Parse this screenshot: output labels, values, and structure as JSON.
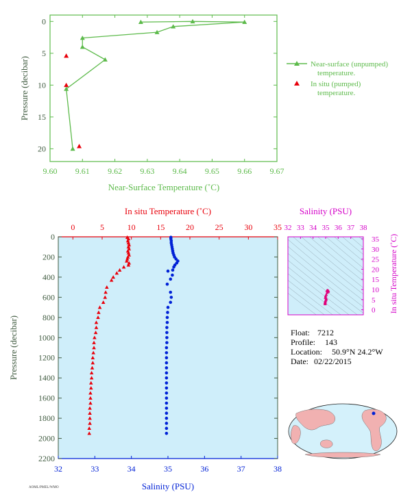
{
  "colors": {
    "green": "#5cba4a",
    "red": "#e8000b",
    "blue": "#0021d6",
    "magenta": "#d400c8",
    "axis_dark": "#3f5a3f",
    "panel_bg": "#cfeefa",
    "contour": "#8fa4b0",
    "land": "#f1b1b1",
    "ocean": "#d4f1fb"
  },
  "meta": {
    "float_label": "Float:",
    "float_value": "7212",
    "profile_label": "Profile:",
    "profile_value": "143",
    "location_label": "Location:",
    "location_value": "50.9°N  24.2°W",
    "date_label": "Date:",
    "date_value": "02/22/2015",
    "footnote": "AOML/PMEL/WMO"
  },
  "chart_data": [
    {
      "id": "near-surface",
      "type": "scatter",
      "xlabel": "Near-Surface Temperature (˚C)",
      "ylabel": "Pressure (decibar)",
      "xlim": [
        9.6,
        9.67
      ],
      "ylim": [
        22,
        -1
      ],
      "xticks": [
        "9.60",
        "9.61",
        "9.62",
        "9.63",
        "9.64",
        "9.65",
        "9.66",
        "9.67"
      ],
      "yticks": [
        "0",
        "5",
        "10",
        "15",
        "20"
      ],
      "legend_position": "right",
      "series": [
        {
          "name": "Near-surface (unpumped) temperature.",
          "legend_lines": [
            "Near-surface (unpumped)",
            "temperature."
          ],
          "color": "#5cba4a",
          "marker": "triangle",
          "connected": true,
          "points": [
            [
              9.628,
              0.1
            ],
            [
              9.644,
              0.0
            ],
            [
              9.66,
              0.1
            ],
            [
              9.638,
              0.8
            ],
            [
              9.633,
              1.7
            ],
            [
              9.61,
              2.6
            ],
            [
              9.61,
              4.0
            ],
            [
              9.617,
              6.0
            ],
            [
              9.605,
              10.6
            ],
            [
              9.607,
              20.0
            ]
          ]
        },
        {
          "name": "In situ (pumped) temperature.",
          "legend_lines": [
            "In situ (pumped)",
            "temperature."
          ],
          "color": "#e8000b",
          "marker": "triangle",
          "connected": false,
          "points": [
            [
              9.605,
              5.4
            ],
            [
              9.605,
              10.0
            ],
            [
              9.609,
              19.6
            ]
          ]
        }
      ]
    },
    {
      "id": "profile",
      "type": "scatter",
      "top_xlabel": "In situ Temperature (˚C)",
      "bottom_xlabel": "Salinity (PSU)",
      "ylabel": "Pressure (decibar)",
      "temp_lim": [
        -2.5,
        35
      ],
      "temp_ticks": [
        "0",
        "5",
        "10",
        "15",
        "20",
        "25",
        "30",
        "35"
      ],
      "sal_lim": [
        32,
        38
      ],
      "sal_ticks": [
        "32",
        "33",
        "34",
        "35",
        "36",
        "37",
        "38"
      ],
      "pres_lim": [
        2200,
        0
      ],
      "pres_ticks": [
        "0",
        "200",
        "400",
        "600",
        "800",
        "1000",
        "1200",
        "1400",
        "1600",
        "1800",
        "2000",
        "2200"
      ],
      "temperature": {
        "color": "#e8000b",
        "points": [
          [
            9.3,
            5
          ],
          [
            9.5,
            20
          ],
          [
            9.4,
            40
          ],
          [
            9.5,
            60
          ],
          [
            9.6,
            80
          ],
          [
            9.5,
            100
          ],
          [
            9.6,
            120
          ],
          [
            9.4,
            140
          ],
          [
            9.5,
            160
          ],
          [
            9.6,
            180
          ],
          [
            9.4,
            200
          ],
          [
            9.3,
            220
          ],
          [
            9.2,
            240
          ],
          [
            9.6,
            260
          ],
          [
            9.5,
            280
          ],
          [
            8.7,
            300
          ],
          [
            8.0,
            330
          ],
          [
            7.5,
            360
          ],
          [
            6.9,
            400
          ],
          [
            6.6,
            430
          ],
          [
            5.8,
            500
          ],
          [
            5.6,
            550
          ],
          [
            5.5,
            600
          ],
          [
            5.2,
            650
          ],
          [
            4.6,
            700
          ],
          [
            4.4,
            750
          ],
          [
            4.3,
            800
          ],
          [
            4.0,
            850
          ],
          [
            4.0,
            900
          ],
          [
            3.9,
            950
          ],
          [
            3.7,
            1000
          ],
          [
            3.6,
            1050
          ],
          [
            3.6,
            1100
          ],
          [
            3.5,
            1150
          ],
          [
            3.4,
            1200
          ],
          [
            3.4,
            1250
          ],
          [
            3.3,
            1300
          ],
          [
            3.2,
            1350
          ],
          [
            3.2,
            1400
          ],
          [
            3.1,
            1450
          ],
          [
            3.1,
            1500
          ],
          [
            3.0,
            1550
          ],
          [
            3.0,
            1600
          ],
          [
            3.0,
            1650
          ],
          [
            2.9,
            1700
          ],
          [
            2.9,
            1750
          ],
          [
            2.9,
            1800
          ],
          [
            2.9,
            1850
          ],
          [
            2.8,
            1900
          ],
          [
            2.8,
            1950
          ]
        ]
      },
      "salinity": {
        "color": "#0021d6",
        "points": [
          [
            35.08,
            5
          ],
          [
            35.08,
            20
          ],
          [
            35.09,
            40
          ],
          [
            35.09,
            60
          ],
          [
            35.1,
            80
          ],
          [
            35.11,
            100
          ],
          [
            35.12,
            120
          ],
          [
            35.13,
            140
          ],
          [
            35.14,
            160
          ],
          [
            35.16,
            180
          ],
          [
            35.18,
            200
          ],
          [
            35.22,
            220
          ],
          [
            35.27,
            240
          ],
          [
            35.24,
            260
          ],
          [
            35.19,
            280
          ],
          [
            35.16,
            300
          ],
          [
            35.13,
            330
          ],
          [
            35.0,
            340
          ],
          [
            35.12,
            380
          ],
          [
            35.07,
            420
          ],
          [
            34.98,
            470
          ],
          [
            35.07,
            550
          ],
          [
            35.09,
            600
          ],
          [
            35.07,
            650
          ],
          [
            35.0,
            700
          ],
          [
            34.99,
            750
          ],
          [
            34.98,
            800
          ],
          [
            34.98,
            850
          ],
          [
            34.97,
            900
          ],
          [
            34.97,
            950
          ],
          [
            34.97,
            1000
          ],
          [
            34.97,
            1050
          ],
          [
            34.96,
            1100
          ],
          [
            34.96,
            1150
          ],
          [
            34.96,
            1200
          ],
          [
            34.96,
            1250
          ],
          [
            34.96,
            1300
          ],
          [
            34.96,
            1350
          ],
          [
            34.96,
            1400
          ],
          [
            34.96,
            1450
          ],
          [
            34.96,
            1500
          ],
          [
            34.96,
            1550
          ],
          [
            34.96,
            1600
          ],
          [
            34.96,
            1650
          ],
          [
            34.96,
            1700
          ],
          [
            34.96,
            1750
          ],
          [
            34.96,
            1800
          ],
          [
            34.96,
            1850
          ],
          [
            34.96,
            1900
          ],
          [
            34.96,
            1950
          ]
        ]
      }
    },
    {
      "id": "ts-diagram",
      "type": "scatter",
      "top_xlabel": "Salinity (PSU)",
      "right_ylabel": "In situ Temperature (˚C)",
      "sal_lim": [
        32,
        38
      ],
      "sal_ticks": [
        "32",
        "33",
        "34",
        "35",
        "36",
        "37",
        "38"
      ],
      "temp_lim": [
        -2.5,
        36
      ],
      "temp_ticks": [
        "0",
        "5",
        "10",
        "15",
        "20",
        "25",
        "30",
        "35"
      ],
      "color": "#e0007a",
      "points": [
        [
          35.1,
          9.4
        ],
        [
          35.12,
          9.5
        ],
        [
          35.16,
          9.6
        ],
        [
          35.22,
          9.4
        ],
        [
          35.2,
          9.0
        ],
        [
          35.12,
          8.5
        ],
        [
          35.05,
          7.5
        ],
        [
          35.0,
          6.8
        ],
        [
          34.98,
          6.0
        ],
        [
          35.05,
          5.5
        ],
        [
          35.03,
          5.0
        ],
        [
          34.99,
          4.5
        ],
        [
          34.97,
          4.0
        ],
        [
          34.96,
          3.6
        ],
        [
          34.96,
          3.2
        ],
        [
          34.96,
          2.9
        ]
      ]
    }
  ]
}
